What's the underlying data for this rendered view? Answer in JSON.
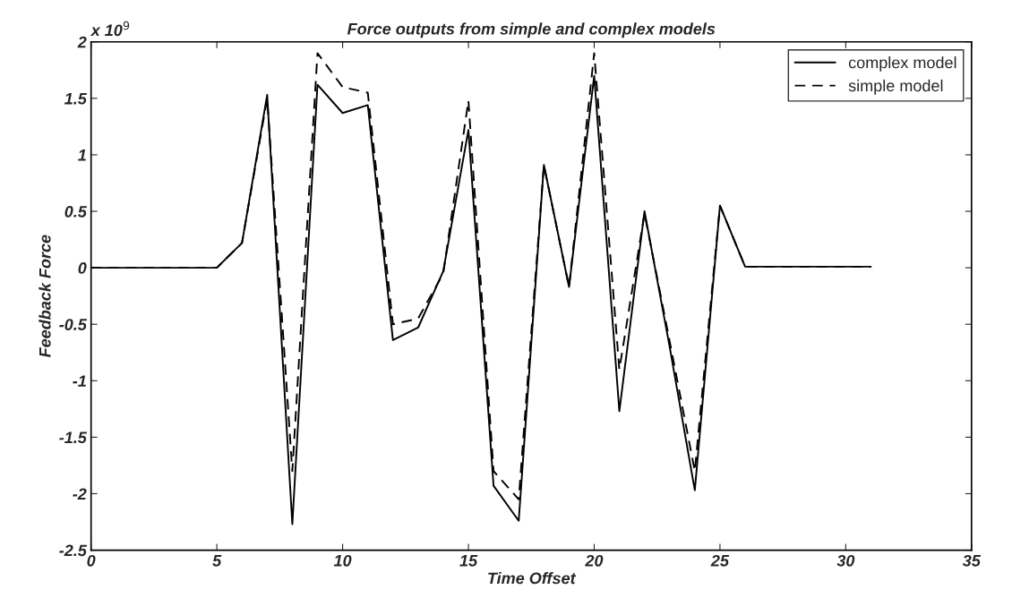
{
  "chart_data": {
    "type": "line",
    "title": "Force outputs from simple and complex models",
    "xlabel": "Time Offset",
    "ylabel": "Feedback Force",
    "annotations": [
      "x 10$^{9}$"
    ],
    "x": [
      0,
      1,
      2,
      3,
      4,
      5,
      6,
      7,
      8,
      9,
      10,
      11,
      12,
      13,
      14,
      15,
      16,
      17,
      18,
      19,
      20,
      21,
      22,
      23,
      24,
      25,
      26,
      27,
      28,
      29,
      30,
      31
    ],
    "series": [
      {
        "name": "complex model",
        "color": "#000000",
        "line_style": "solid",
        "values": [
          0,
          0,
          0,
          0,
          0,
          0,
          0.22,
          1.53,
          -2.27,
          1.62,
          1.37,
          1.44,
          -0.64,
          -0.53,
          -0.03,
          1.22,
          -1.93,
          -2.24,
          0.91,
          -0.17,
          1.7,
          -1.27,
          0.5,
          -0.7,
          -1.97,
          0.55,
          0.01,
          0.01,
          0.01,
          0.01,
          0.01,
          0.01
        ]
      },
      {
        "name": "simple model",
        "color": "#000000",
        "line_style": "dashed",
        "values": [
          0,
          0,
          0,
          0,
          0,
          0,
          0.22,
          1.5,
          -1.8,
          1.9,
          1.6,
          1.55,
          -0.5,
          -0.45,
          -0.05,
          1.48,
          -1.8,
          -2.05,
          0.91,
          -0.17,
          1.9,
          -0.9,
          0.48,
          -0.65,
          -1.8,
          0.55,
          0.01,
          0.01,
          0.01,
          0.01,
          0.01,
          0.01
        ]
      }
    ],
    "xlim": [
      0,
      35
    ],
    "xticks": [
      0,
      5,
      10,
      15,
      20,
      25,
      30,
      35
    ],
    "ylim": [
      -2.5,
      2
    ],
    "yticks": [
      -2.5,
      -2,
      -1.5,
      -1,
      -0.5,
      0,
      0.5,
      1,
      1.5,
      2
    ],
    "grid": false,
    "legend": "top right",
    "marker": "none"
  }
}
